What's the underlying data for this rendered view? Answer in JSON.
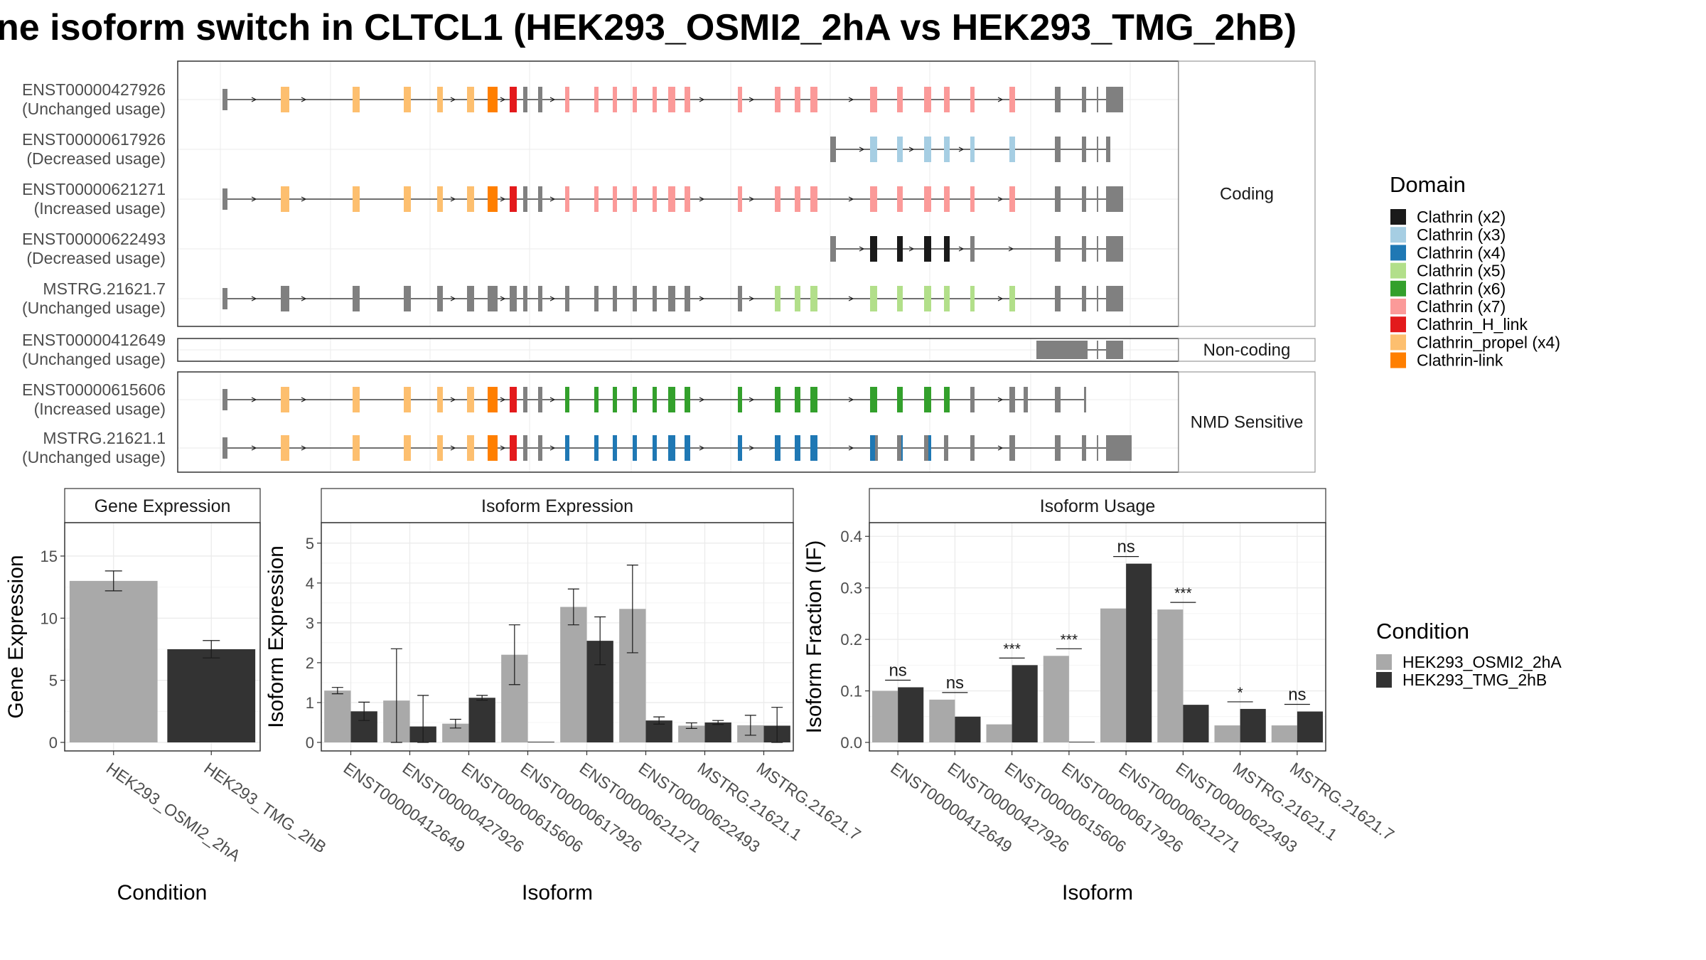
{
  "title": "ne isoform switch in CLTCL1 (HEK293_OSMI2_2hA vs HEK293_TMG_2hB)",
  "colors": {
    "grey_exon": "#808080",
    "cond_a": "#A9A9A9",
    "cond_b": "#333333",
    "panel_border": "#333333",
    "strip_bg": "#FFFFFF",
    "grid": "#EBEBEB"
  },
  "legend_domain": {
    "title": "Domain",
    "items": [
      {
        "label": "Clathrin (x2)",
        "color": "#1A1A1A"
      },
      {
        "label": "Clathrin (x3)",
        "color": "#A6CEE3"
      },
      {
        "label": "Clathrin (x4)",
        "color": "#1F78B4"
      },
      {
        "label": "Clathrin (x5)",
        "color": "#B2DF8A"
      },
      {
        "label": "Clathrin (x6)",
        "color": "#33A02C"
      },
      {
        "label": "Clathrin (x7)",
        "color": "#FB9A99"
      },
      {
        "label": "Clathrin_H_link",
        "color": "#E31A1C"
      },
      {
        "label": "Clathrin_propel (x4)",
        "color": "#FDBF6F"
      },
      {
        "label": "Clathrin-link",
        "color": "#FF7F00"
      }
    ]
  },
  "legend_condition": {
    "title": "Condition",
    "items": [
      {
        "label": "HEK293_OSMI2_2hA",
        "color": "#A9A9A9"
      },
      {
        "label": "HEK293_TMG_2hB",
        "color": "#333333"
      }
    ]
  },
  "structure": {
    "groups": [
      {
        "name": "Coding",
        "transcripts": [
          {
            "id": "ENST00000427926",
            "usage": "(Unchanged usage)"
          },
          {
            "id": "ENST00000617926",
            "usage": "(Decreased usage)"
          },
          {
            "id": "ENST00000621271",
            "usage": "(Increased usage)"
          },
          {
            "id": "ENST00000622493",
            "usage": "(Decreased usage)"
          },
          {
            "id": "MSTRG.21621.7",
            "usage": "(Unchanged usage)"
          }
        ]
      },
      {
        "name": "Non-coding",
        "transcripts": [
          {
            "id": "ENST00000412649",
            "usage": "(Unchanged usage)"
          }
        ]
      },
      {
        "name": "NMD Sensitive",
        "transcripts": [
          {
            "id": "ENST00000615606",
            "usage": "(Increased usage)"
          },
          {
            "id": "MSTRG.21621.1",
            "usage": "(Unchanged usage)"
          }
        ]
      }
    ]
  },
  "chart_data": [
    {
      "type": "bar",
      "title": "Gene Expression",
      "xlabel": "Condition",
      "ylabel": "Gene Expression",
      "ylim": [
        0,
        17
      ],
      "yticks": [
        0,
        5,
        10,
        15
      ],
      "categories": [
        "HEK293_OSMI2_2hA",
        "HEK293_TMG_2hB"
      ],
      "values": [
        13.0,
        7.5
      ],
      "error_low": [
        12.2,
        6.8
      ],
      "error_high": [
        13.8,
        8.2
      ]
    },
    {
      "type": "bar",
      "title": "Isoform Expression",
      "xlabel": "Isoform",
      "ylabel": "Isoform Expression",
      "ylim": [
        0,
        5.3
      ],
      "yticks": [
        0,
        1,
        2,
        3,
        4,
        5
      ],
      "categories": [
        "ENST00000412649",
        "ENST00000427926",
        "ENST00000615606",
        "ENST00000617926",
        "ENST00000621271",
        "ENST00000622493",
        "MSTRG.21621.1",
        "MSTRG.21621.7"
      ],
      "series": [
        {
          "name": "HEK293_OSMI2_2hA",
          "values": [
            1.3,
            1.05,
            0.47,
            2.2,
            3.4,
            3.35,
            0.42,
            0.43
          ],
          "error_low": [
            1.22,
            0.0,
            0.36,
            1.45,
            2.95,
            2.25,
            0.35,
            0.18
          ],
          "error_high": [
            1.38,
            2.35,
            0.58,
            2.95,
            3.85,
            4.45,
            0.49,
            0.68
          ]
        },
        {
          "name": "HEK293_TMG_2hB",
          "values": [
            0.78,
            0.4,
            1.12,
            0.0,
            2.55,
            0.55,
            0.5,
            0.42
          ],
          "error_low": [
            0.55,
            0.0,
            1.06,
            0.0,
            1.95,
            0.46,
            0.45,
            0.0
          ],
          "error_high": [
            1.01,
            1.18,
            1.18,
            0.0,
            3.15,
            0.64,
            0.55,
            0.88
          ]
        }
      ]
    },
    {
      "type": "bar",
      "title": "Isoform Usage",
      "xlabel": "Isoform",
      "ylabel": "Isoform Fraction (IF)",
      "ylim": [
        0,
        0.41
      ],
      "yticks": [
        0.0,
        0.1,
        0.2,
        0.3,
        0.4
      ],
      "categories": [
        "ENST00000412649",
        "ENST00000427926",
        "ENST00000615606",
        "ENST00000617926",
        "ENST00000621271",
        "ENST00000622493",
        "MSTRG.21621.1",
        "MSTRG.21621.7"
      ],
      "series": [
        {
          "name": "HEK293_OSMI2_2hA",
          "values": [
            0.1,
            0.083,
            0.035,
            0.168,
            0.26,
            0.258,
            0.033,
            0.033
          ]
        },
        {
          "name": "HEK293_TMG_2hB",
          "values": [
            0.107,
            0.05,
            0.15,
            0.0,
            0.347,
            0.073,
            0.065,
            0.06
          ]
        }
      ],
      "significance": [
        "ns",
        "ns",
        "***",
        "***",
        "ns",
        "***",
        "*",
        "ns"
      ]
    }
  ]
}
